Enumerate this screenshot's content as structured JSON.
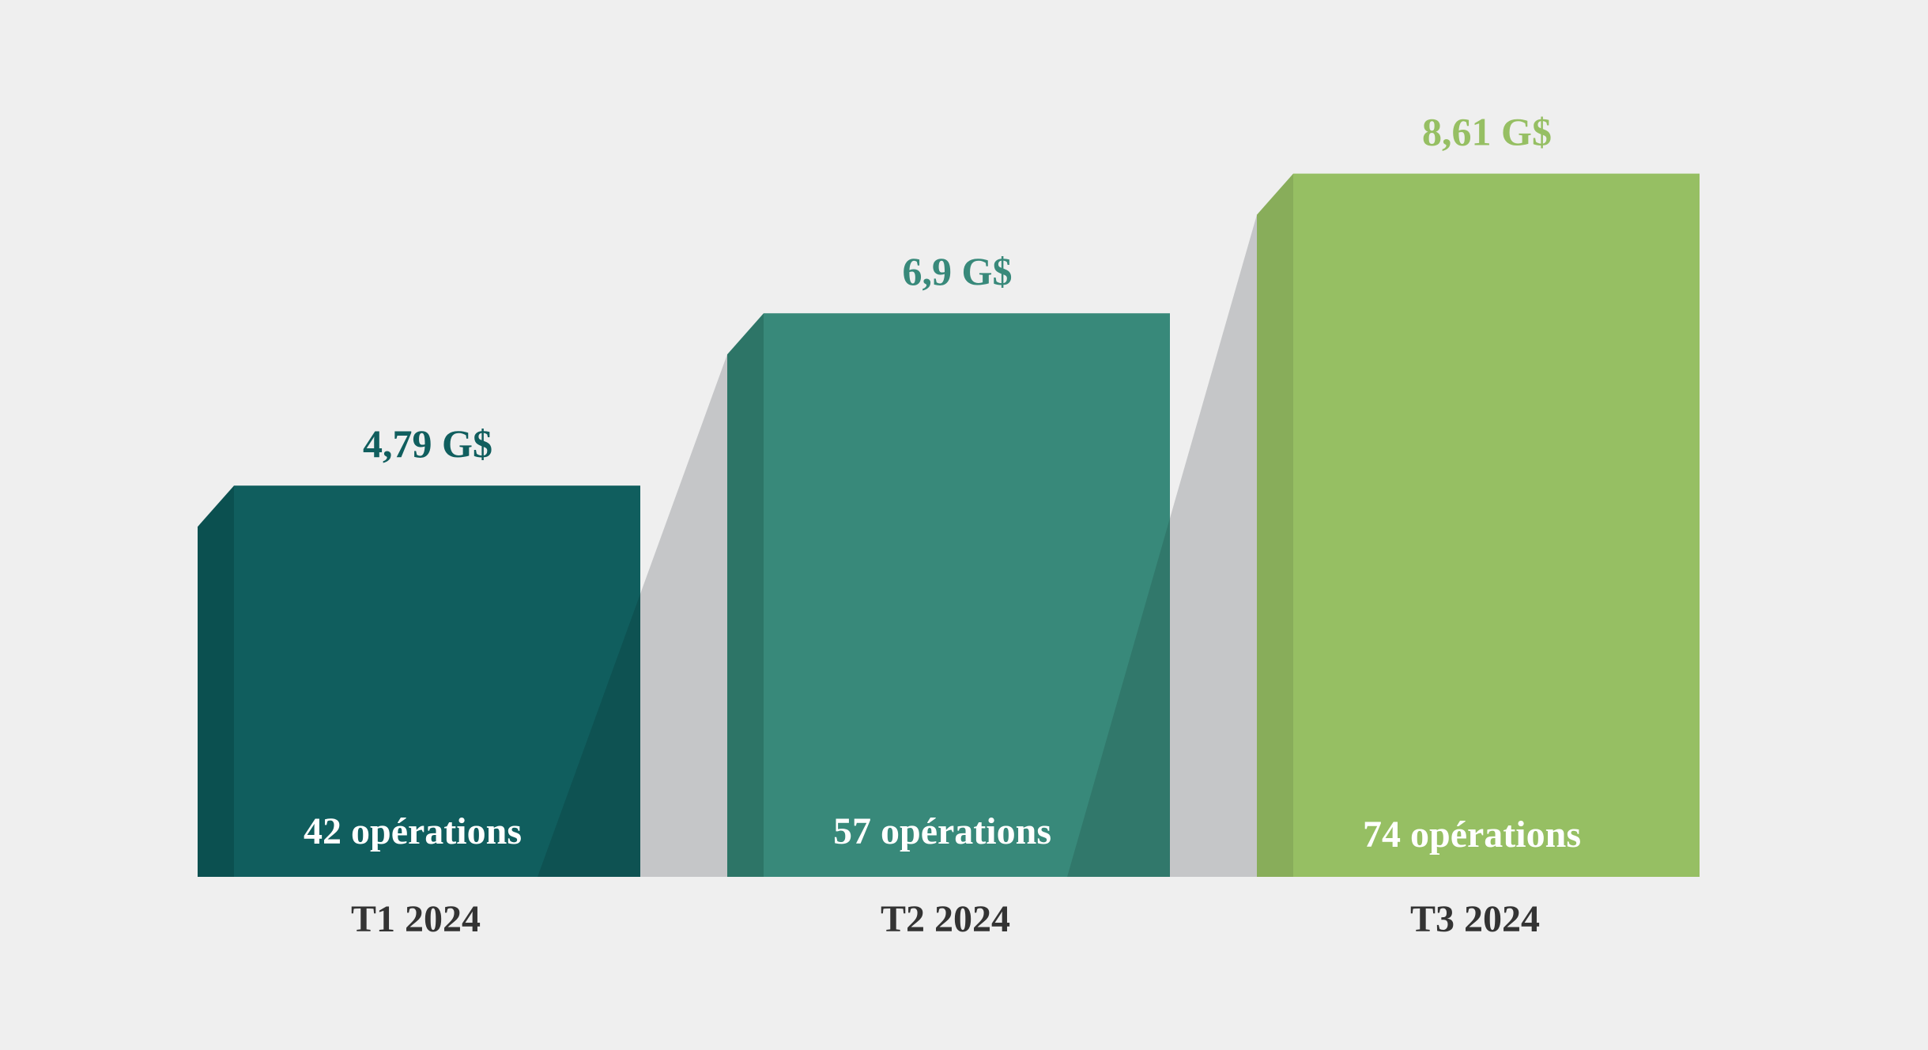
{
  "chart_data": {
    "type": "bar",
    "categories": [
      "T1 2024",
      "T2 2024",
      "T3 2024"
    ],
    "values": [
      4.79,
      6.9,
      8.61
    ],
    "value_labels": [
      "4,79 G$",
      "6,9 G$",
      "8,61 G$"
    ],
    "bar_labels": [
      "42 opérations",
      "57 opérations",
      "74 opérations"
    ],
    "operations": [
      42,
      57,
      74
    ],
    "ylim": [
      0,
      10
    ],
    "colors": {
      "bars": [
        "#105e5e",
        "#38897a",
        "#96bf63"
      ],
      "bar_side": [
        "#0b5050",
        "#2d7567",
        "#88ad5a"
      ],
      "value_labels": [
        "#105e5e",
        "#38897a",
        "#96bf63"
      ],
      "bar_label_text": "#ffffff",
      "category_text": "#333333",
      "shadow": "#c5c6c8",
      "background": "#efefef"
    },
    "grid": false,
    "legend": "none"
  }
}
